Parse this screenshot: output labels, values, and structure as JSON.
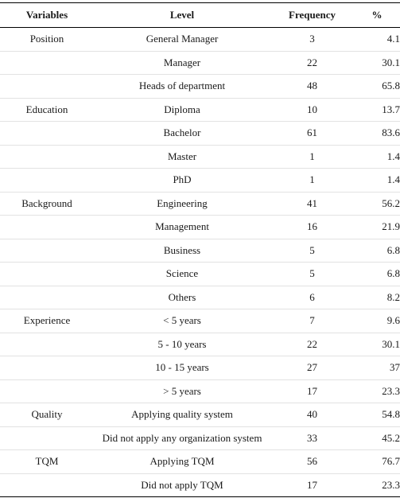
{
  "headers": {
    "variables": "Variables",
    "level": "Level",
    "frequency": "Frequency",
    "percent": "%"
  },
  "rows": [
    {
      "variable": "Position",
      "level": "General Manager",
      "frequency": "3",
      "percent": "4.1"
    },
    {
      "variable": "",
      "level": "Manager",
      "frequency": "22",
      "percent": "30.1"
    },
    {
      "variable": "",
      "level": "Heads of department",
      "frequency": "48",
      "percent": "65.8"
    },
    {
      "variable": "Education",
      "level": "Diploma",
      "frequency": "10",
      "percent": "13.7"
    },
    {
      "variable": "",
      "level": "Bachelor",
      "frequency": "61",
      "percent": "83.6"
    },
    {
      "variable": "",
      "level": "Master",
      "frequency": "1",
      "percent": "1.4"
    },
    {
      "variable": "",
      "level": "PhD",
      "frequency": "1",
      "percent": "1.4"
    },
    {
      "variable": "Background",
      "level": "Engineering",
      "frequency": "41",
      "percent": "56.2"
    },
    {
      "variable": "",
      "level": "Management",
      "frequency": "16",
      "percent": "21.9"
    },
    {
      "variable": "",
      "level": "Business",
      "frequency": "5",
      "percent": "6.8"
    },
    {
      "variable": "",
      "level": "Science",
      "frequency": "5",
      "percent": "6.8"
    },
    {
      "variable": "",
      "level": "Others",
      "frequency": "6",
      "percent": "8.2"
    },
    {
      "variable": "Experience",
      "level": "< 5 years",
      "frequency": "7",
      "percent": "9.6"
    },
    {
      "variable": "",
      "level": "5 - 10 years",
      "frequency": "22",
      "percent": "30.1"
    },
    {
      "variable": "",
      "level": "10 - 15 years",
      "frequency": "27",
      "percent": "37"
    },
    {
      "variable": "",
      "level": "> 5 years",
      "frequency": "17",
      "percent": "23.3"
    },
    {
      "variable": "Quality",
      "level": "Applying quality system",
      "frequency": "40",
      "percent": "54.8"
    },
    {
      "variable": "",
      "level": "Did not apply any organization system",
      "frequency": "33",
      "percent": "45.2"
    },
    {
      "variable": "TQM",
      "level": "Applying TQM",
      "frequency": "56",
      "percent": "76.7"
    },
    {
      "variable": "",
      "level": "Did not apply TQM",
      "frequency": "17",
      "percent": "23.3"
    }
  ]
}
